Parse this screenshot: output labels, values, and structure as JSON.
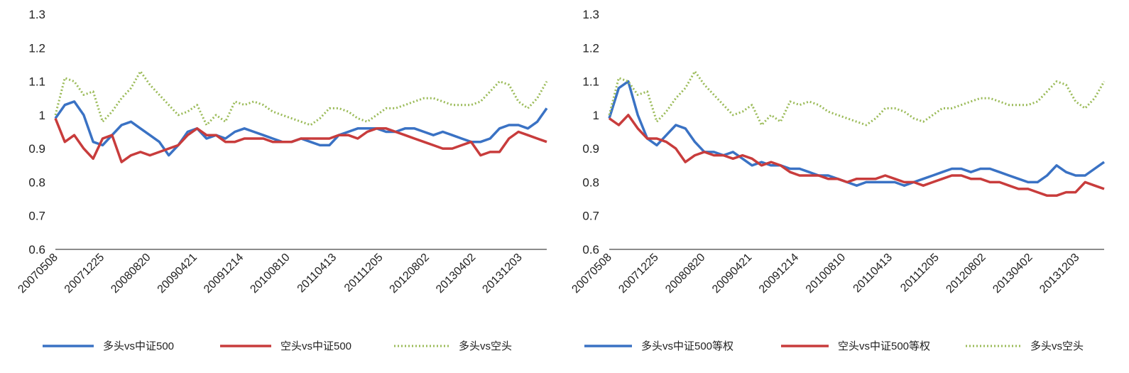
{
  "chart_data": [
    {
      "type": "line",
      "title": "",
      "xlabel": "",
      "ylabel": "",
      "ylim": [
        0.6,
        1.3
      ],
      "yticks": [
        "0.6",
        "0.7",
        "0.8",
        "0.9",
        "1",
        "1.1",
        "1.2",
        "1.3"
      ],
      "x_tick_labels": [
        "20070508",
        "20071225",
        "20080820",
        "20090421",
        "20091214",
        "20100810",
        "20110413",
        "20111205",
        "20120802",
        "20130402",
        "20131203"
      ],
      "grid": false,
      "legend_position": "bottom",
      "series": [
        {
          "name": "多头vs中证500",
          "color": "#3a72c4",
          "style": "solid",
          "values": [
            0.99,
            1.03,
            1.04,
            1.0,
            0.92,
            0.91,
            0.94,
            0.97,
            0.98,
            0.96,
            0.94,
            0.92,
            0.88,
            0.91,
            0.95,
            0.96,
            0.93,
            0.94,
            0.93,
            0.95,
            0.96,
            0.95,
            0.94,
            0.93,
            0.92,
            0.92,
            0.93,
            0.92,
            0.91,
            0.91,
            0.94,
            0.95,
            0.96,
            0.96,
            0.96,
            0.95,
            0.95,
            0.96,
            0.96,
            0.95,
            0.94,
            0.95,
            0.94,
            0.93,
            0.92,
            0.92,
            0.93,
            0.96,
            0.97,
            0.97,
            0.96,
            0.98,
            1.02
          ]
        },
        {
          "name": "空头vs中证500",
          "color": "#c83c3c",
          "style": "solid",
          "values": [
            0.99,
            0.92,
            0.94,
            0.9,
            0.87,
            0.93,
            0.94,
            0.86,
            0.88,
            0.89,
            0.88,
            0.89,
            0.9,
            0.91,
            0.94,
            0.96,
            0.94,
            0.94,
            0.92,
            0.92,
            0.93,
            0.93,
            0.93,
            0.92,
            0.92,
            0.92,
            0.93,
            0.93,
            0.93,
            0.93,
            0.94,
            0.94,
            0.93,
            0.95,
            0.96,
            0.96,
            0.95,
            0.94,
            0.93,
            0.92,
            0.91,
            0.9,
            0.9,
            0.91,
            0.92,
            0.88,
            0.89,
            0.89,
            0.93,
            0.95,
            0.94,
            0.93,
            0.92
          ]
        },
        {
          "name": "多头vs空头",
          "color": "#9bbb59",
          "style": "dotted",
          "values": [
            1.0,
            1.11,
            1.1,
            1.06,
            1.07,
            0.98,
            1.01,
            1.05,
            1.08,
            1.13,
            1.09,
            1.06,
            1.03,
            1.0,
            1.01,
            1.03,
            0.97,
            1.0,
            0.98,
            1.04,
            1.03,
            1.04,
            1.03,
            1.01,
            1.0,
            0.99,
            0.98,
            0.97,
            0.99,
            1.02,
            1.02,
            1.01,
            0.99,
            0.98,
            1.0,
            1.02,
            1.02,
            1.03,
            1.04,
            1.05,
            1.05,
            1.04,
            1.03,
            1.03,
            1.03,
            1.04,
            1.07,
            1.1,
            1.09,
            1.04,
            1.02,
            1.05,
            1.1
          ]
        }
      ]
    },
    {
      "type": "line",
      "title": "",
      "xlabel": "",
      "ylabel": "",
      "ylim": [
        0.6,
        1.3
      ],
      "yticks": [
        "0.6",
        "0.7",
        "0.8",
        "0.9",
        "1",
        "1.1",
        "1.2",
        "1.3"
      ],
      "x_tick_labels": [
        "20070508",
        "20071225",
        "20080820",
        "20090421",
        "20091214",
        "20100810",
        "20110413",
        "20111205",
        "20120802",
        "20130402",
        "20131203"
      ],
      "grid": false,
      "legend_position": "bottom",
      "series": [
        {
          "name": "多头vs中证500等权",
          "color": "#3a72c4",
          "style": "solid",
          "values": [
            0.99,
            1.08,
            1.1,
            1.0,
            0.93,
            0.91,
            0.94,
            0.97,
            0.96,
            0.92,
            0.89,
            0.89,
            0.88,
            0.89,
            0.87,
            0.85,
            0.86,
            0.85,
            0.85,
            0.84,
            0.84,
            0.83,
            0.82,
            0.82,
            0.81,
            0.8,
            0.79,
            0.8,
            0.8,
            0.8,
            0.8,
            0.79,
            0.8,
            0.81,
            0.82,
            0.83,
            0.84,
            0.84,
            0.83,
            0.84,
            0.84,
            0.83,
            0.82,
            0.81,
            0.8,
            0.8,
            0.82,
            0.85,
            0.83,
            0.82,
            0.82,
            0.84,
            0.86
          ]
        },
        {
          "name": "空头vs中证500等权",
          "color": "#c83c3c",
          "style": "solid",
          "values": [
            0.99,
            0.97,
            1.0,
            0.96,
            0.93,
            0.93,
            0.92,
            0.9,
            0.86,
            0.88,
            0.89,
            0.88,
            0.88,
            0.87,
            0.88,
            0.87,
            0.85,
            0.86,
            0.85,
            0.83,
            0.82,
            0.82,
            0.82,
            0.81,
            0.81,
            0.8,
            0.81,
            0.81,
            0.81,
            0.82,
            0.81,
            0.8,
            0.8,
            0.79,
            0.8,
            0.81,
            0.82,
            0.82,
            0.81,
            0.81,
            0.8,
            0.8,
            0.79,
            0.78,
            0.78,
            0.77,
            0.76,
            0.76,
            0.77,
            0.77,
            0.8,
            0.79,
            0.78
          ]
        },
        {
          "name": "多头vs空头",
          "color": "#9bbb59",
          "style": "dotted",
          "values": [
            1.0,
            1.11,
            1.1,
            1.06,
            1.07,
            0.98,
            1.01,
            1.05,
            1.08,
            1.13,
            1.09,
            1.06,
            1.03,
            1.0,
            1.01,
            1.03,
            0.97,
            1.0,
            0.98,
            1.04,
            1.03,
            1.04,
            1.03,
            1.01,
            1.0,
            0.99,
            0.98,
            0.97,
            0.99,
            1.02,
            1.02,
            1.01,
            0.99,
            0.98,
            1.0,
            1.02,
            1.02,
            1.03,
            1.04,
            1.05,
            1.05,
            1.04,
            1.03,
            1.03,
            1.03,
            1.04,
            1.07,
            1.1,
            1.09,
            1.04,
            1.02,
            1.05,
            1.1
          ]
        }
      ]
    }
  ]
}
